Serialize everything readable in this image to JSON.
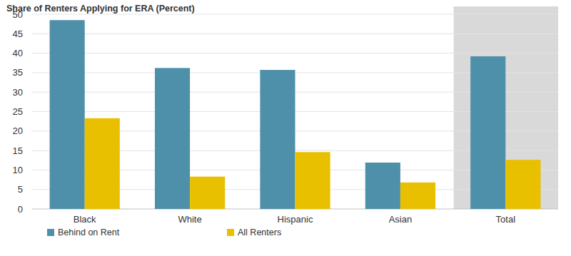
{
  "chart_data": {
    "type": "bar",
    "title": "Share of Renters Applying for ERA (Percent)",
    "categories": [
      "Black",
      "White",
      "Hispanic",
      "Asian",
      "Total"
    ],
    "series": [
      {
        "name": "Behind on Rent",
        "color": "#4e8fa9",
        "values": [
          48.5,
          36.2,
          35.7,
          11.9,
          39.2
        ]
      },
      {
        "name": "All Renters",
        "color": "#e8c000",
        "values": [
          23.3,
          8.3,
          14.6,
          6.8,
          12.6
        ]
      }
    ],
    "ylim": [
      0,
      50
    ],
    "yticks": [
      0,
      5,
      10,
      15,
      20,
      25,
      30,
      35,
      40,
      45,
      50
    ],
    "grid": true,
    "legend": "bottom-left"
  }
}
